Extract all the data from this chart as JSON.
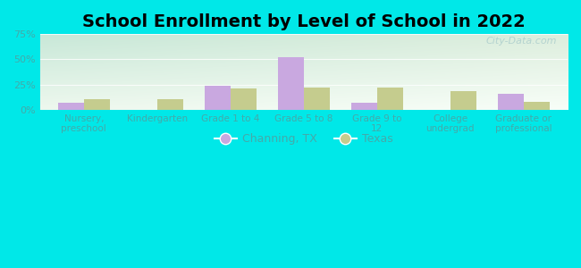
{
  "title": "School Enrollment by Level of School in 2022",
  "categories": [
    "Nursery,\npreschool",
    "Kindergarten",
    "Grade 1 to 4",
    "Grade 5 to 8",
    "Grade 9 to\n12",
    "College\nundergrad",
    "Graduate or\nprofessional"
  ],
  "channing_values": [
    7,
    0,
    24,
    52,
    7,
    0,
    16
  ],
  "texas_values": [
    10,
    10,
    21,
    22,
    22,
    18,
    8
  ],
  "channing_color": "#c9a8e0",
  "texas_color": "#c5cc8e",
  "legend_labels": [
    "Channing, TX",
    "Texas"
  ],
  "ylim": [
    0,
    75
  ],
  "yticks": [
    0,
    25,
    50,
    75
  ],
  "ytick_labels": [
    "0%",
    "25%",
    "50%",
    "75%"
  ],
  "bg_outer": "#00e8e8",
  "bg_plot_topleft": "#c8e8d8",
  "bg_plot_topright": "#ddeedd",
  "bg_plot_bottomleft": "#eef8ee",
  "bg_plot_bottomright": "#f8fef8",
  "tick_color": "#44aaaa",
  "title_fontsize": 14,
  "bar_width": 0.35,
  "watermark": "City-Data.com"
}
